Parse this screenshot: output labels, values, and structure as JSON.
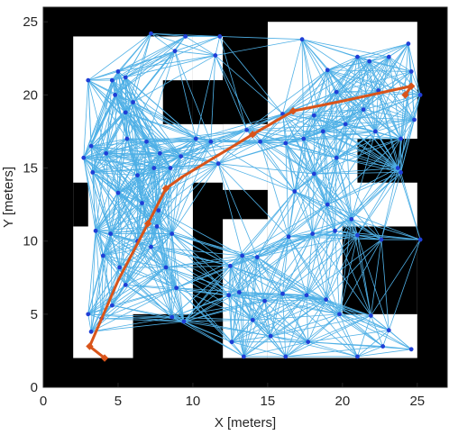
{
  "chart_data": {
    "type": "scatter",
    "title": "",
    "xlabel": "X [meters]",
    "ylabel": "Y [meters]",
    "xlim": [
      0,
      27
    ],
    "ylim": [
      0,
      26
    ],
    "xticks": [
      "0",
      "5",
      "10",
      "15",
      "20",
      "25"
    ],
    "yticks": [
      "0",
      "5",
      "10",
      "15",
      "20",
      "25"
    ],
    "xtick_values": [
      0,
      5,
      10,
      15,
      20,
      25
    ],
    "ytick_values": [
      0,
      5,
      10,
      15,
      20,
      25
    ],
    "grid": false,
    "colors": {
      "obstacle": "#000000",
      "free_space": "#ffffff",
      "roadmap_edges": "#4fb0e6",
      "nodes": "#1f3fd6",
      "path": "#d9541a"
    },
    "free_space_regions": [
      {
        "x": [
          2,
          10
        ],
        "y": [
          2,
          24
        ]
      },
      {
        "x": [
          10,
          12
        ],
        "y": [
          14,
          18
        ]
      },
      {
        "x": [
          10,
          12
        ],
        "y": [
          21,
          24
        ]
      },
      {
        "x": [
          15,
          25
        ],
        "y": [
          2,
          25
        ]
      },
      {
        "x": [
          12,
          15
        ],
        "y": [
          13.5,
          18
        ]
      },
      {
        "x": [
          12,
          15
        ],
        "y": [
          2,
          11.5
        ]
      }
    ],
    "obstacle_regions": [
      {
        "x": [
          6,
          12
        ],
        "y": [
          0,
          5
        ]
      },
      {
        "x": [
          8,
          10
        ],
        "y": [
          18,
          21
        ]
      },
      {
        "x": [
          10,
          12
        ],
        "y": [
          18,
          21
        ]
      },
      {
        "x": [
          2,
          3
        ],
        "y": [
          11,
          14
        ]
      },
      {
        "x": [
          20,
          25
        ],
        "y": [
          5,
          11
        ]
      },
      {
        "x": [
          21,
          27
        ],
        "y": [
          14,
          17
        ]
      },
      {
        "x": [
          12,
          15
        ],
        "y": [
          24,
          26
        ]
      }
    ],
    "nodes": [
      {
        "x": 3.0,
        "y": 21.0
      },
      {
        "x": 4.6,
        "y": 21.0
      },
      {
        "x": 5.0,
        "y": 21.6
      },
      {
        "x": 5.5,
        "y": 21.2
      },
      {
        "x": 7.2,
        "y": 24.2
      },
      {
        "x": 8.8,
        "y": 23.0
      },
      {
        "x": 9.5,
        "y": 24.0
      },
      {
        "x": 11.8,
        "y": 24.0
      },
      {
        "x": 11.5,
        "y": 22.7
      },
      {
        "x": 4.8,
        "y": 20.0
      },
      {
        "x": 6.0,
        "y": 19.5
      },
      {
        "x": 5.5,
        "y": 18.8
      },
      {
        "x": 3.2,
        "y": 16.5
      },
      {
        "x": 2.7,
        "y": 15.7
      },
      {
        "x": 3.3,
        "y": 14.7
      },
      {
        "x": 4.2,
        "y": 16.0
      },
      {
        "x": 5.6,
        "y": 17.0
      },
      {
        "x": 6.9,
        "y": 16.8
      },
      {
        "x": 7.8,
        "y": 16.0
      },
      {
        "x": 7.4,
        "y": 15.0
      },
      {
        "x": 6.3,
        "y": 14.5
      },
      {
        "x": 5.0,
        "y": 13.3
      },
      {
        "x": 6.6,
        "y": 12.6
      },
      {
        "x": 7.7,
        "y": 12.1
      },
      {
        "x": 8.5,
        "y": 15.0
      },
      {
        "x": 9.2,
        "y": 15.8
      },
      {
        "x": 10.2,
        "y": 17.0
      },
      {
        "x": 11.2,
        "y": 16.8
      },
      {
        "x": 11.7,
        "y": 15.3
      },
      {
        "x": 13.6,
        "y": 17.6
      },
      {
        "x": 14.5,
        "y": 16.8
      },
      {
        "x": 3.5,
        "y": 10.7
      },
      {
        "x": 4.5,
        "y": 10.5
      },
      {
        "x": 4.0,
        "y": 9.0
      },
      {
        "x": 5.1,
        "y": 8.2
      },
      {
        "x": 5.5,
        "y": 7.0
      },
      {
        "x": 6.3,
        "y": 10.0
      },
      {
        "x": 7.2,
        "y": 9.6
      },
      {
        "x": 7.6,
        "y": 11.0
      },
      {
        "x": 8.2,
        "y": 8.2
      },
      {
        "x": 8.6,
        "y": 10.5
      },
      {
        "x": 8.9,
        "y": 6.8
      },
      {
        "x": 8.6,
        "y": 4.8
      },
      {
        "x": 9.4,
        "y": 4.5
      },
      {
        "x": 3.2,
        "y": 3.8
      },
      {
        "x": 3.9,
        "y": 4.7
      },
      {
        "x": 4.6,
        "y": 5.6
      },
      {
        "x": 3.0,
        "y": 5.0
      },
      {
        "x": 17.3,
        "y": 23.8
      },
      {
        "x": 19.0,
        "y": 21.7
      },
      {
        "x": 19.6,
        "y": 20.2
      },
      {
        "x": 21.0,
        "y": 22.6
      },
      {
        "x": 21.8,
        "y": 22.3
      },
      {
        "x": 23.1,
        "y": 22.6
      },
      {
        "x": 24.4,
        "y": 23.5
      },
      {
        "x": 24.6,
        "y": 21.6
      },
      {
        "x": 25.2,
        "y": 20.0
      },
      {
        "x": 24.8,
        "y": 18.3
      },
      {
        "x": 22.4,
        "y": 20.3
      },
      {
        "x": 21.4,
        "y": 19.0
      },
      {
        "x": 20.2,
        "y": 18.0
      },
      {
        "x": 22.2,
        "y": 17.5
      },
      {
        "x": 23.9,
        "y": 17.0
      },
      {
        "x": 18.7,
        "y": 17.5
      },
      {
        "x": 17.4,
        "y": 17.0
      },
      {
        "x": 16.2,
        "y": 16.7
      },
      {
        "x": 16.0,
        "y": 18.7
      },
      {
        "x": 18.1,
        "y": 18.6
      },
      {
        "x": 23.7,
        "y": 15.0
      },
      {
        "x": 23.9,
        "y": 14.7
      },
      {
        "x": 19.6,
        "y": 15.7
      },
      {
        "x": 18.1,
        "y": 14.6
      },
      {
        "x": 16.8,
        "y": 13.4
      },
      {
        "x": 19.0,
        "y": 12.5
      },
      {
        "x": 20.6,
        "y": 11.5
      },
      {
        "x": 21.0,
        "y": 10.4
      },
      {
        "x": 22.6,
        "y": 10.1
      },
      {
        "x": 25.2,
        "y": 10.1
      },
      {
        "x": 19.5,
        "y": 10.7
      },
      {
        "x": 18.0,
        "y": 10.5
      },
      {
        "x": 16.4,
        "y": 10.3
      },
      {
        "x": 14.3,
        "y": 8.9
      },
      {
        "x": 13.3,
        "y": 9.0
      },
      {
        "x": 12.5,
        "y": 8.3
      },
      {
        "x": 13.1,
        "y": 6.5
      },
      {
        "x": 12.4,
        "y": 6.3
      },
      {
        "x": 14.8,
        "y": 5.9
      },
      {
        "x": 16.0,
        "y": 6.4
      },
      {
        "x": 17.6,
        "y": 6.3
      },
      {
        "x": 18.9,
        "y": 6.0
      },
      {
        "x": 19.8,
        "y": 5.0
      },
      {
        "x": 21.9,
        "y": 4.9
      },
      {
        "x": 23.1,
        "y": 3.9
      },
      {
        "x": 24.6,
        "y": 2.6
      },
      {
        "x": 22.7,
        "y": 2.8
      },
      {
        "x": 21.0,
        "y": 2.1
      },
      {
        "x": 17.7,
        "y": 3.1
      },
      {
        "x": 16.2,
        "y": 2.1
      },
      {
        "x": 15.2,
        "y": 3.5
      },
      {
        "x": 14.0,
        "y": 4.6
      },
      {
        "x": 12.6,
        "y": 3.1
      },
      {
        "x": 13.4,
        "y": 2.1
      }
    ],
    "path": {
      "x": [
        4.1,
        3.1,
        5.0,
        7.0,
        8.2,
        9.3,
        14.0,
        16.7,
        20.1,
        24.6,
        24.2
      ],
      "y": [
        2.0,
        2.8,
        7.3,
        11.2,
        13.6,
        14.4,
        17.3,
        18.9,
        19.6,
        20.6,
        20.0
      ]
    },
    "path_markers": [
      {
        "x": 4.1,
        "y": 2.0
      },
      {
        "x": 3.1,
        "y": 2.8
      },
      {
        "x": 7.0,
        "y": 11.2
      },
      {
        "x": 8.2,
        "y": 13.6
      },
      {
        "x": 14.0,
        "y": 17.3
      },
      {
        "x": 16.7,
        "y": 18.9
      },
      {
        "x": 24.6,
        "y": 20.6
      },
      {
        "x": 24.2,
        "y": 20.0
      }
    ]
  }
}
